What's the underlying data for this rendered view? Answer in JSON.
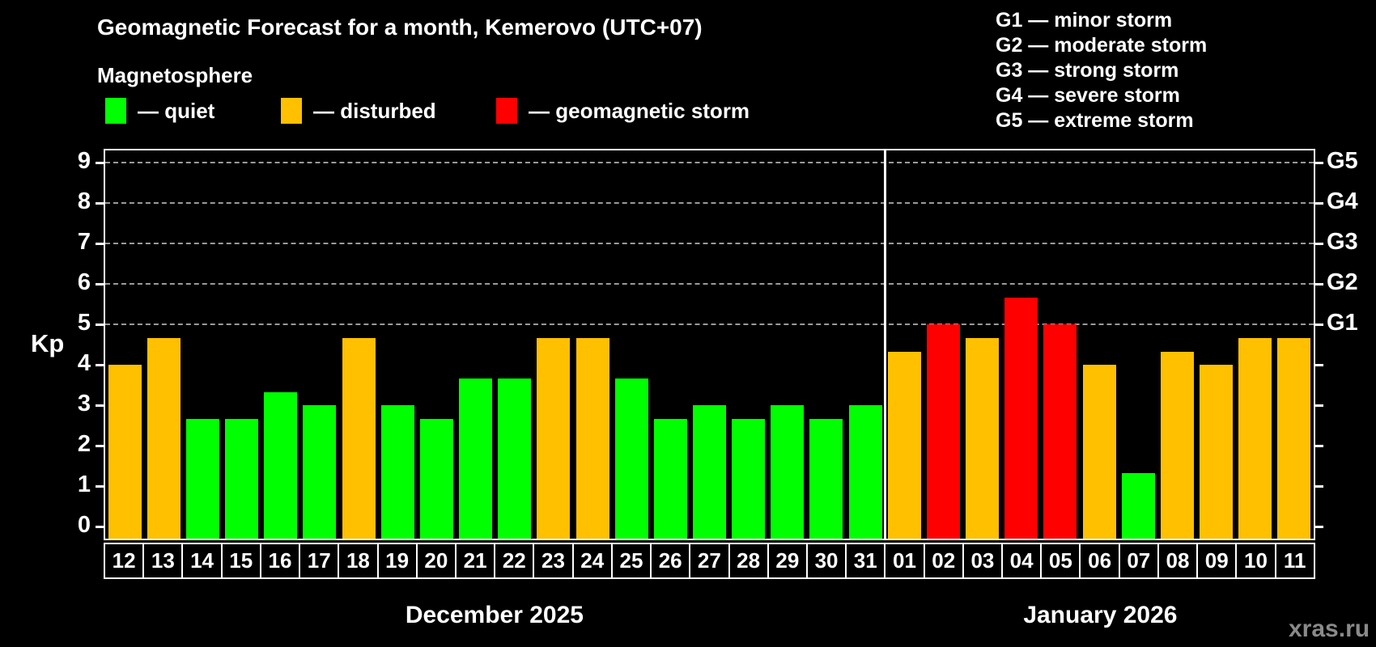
{
  "page": {
    "title": "Geomagnetic Forecast for a month, Kemerovo (UTC+07)",
    "subtitle": "Magnetosphere",
    "watermark": "xras.ru"
  },
  "legend": {
    "items": [
      {
        "id": "quiet",
        "color": "#00ff00",
        "label": "— quiet",
        "x": 130
      },
      {
        "id": "disturbed",
        "color": "#ffc000",
        "label": "— disturbed",
        "x": 347
      },
      {
        "id": "storm",
        "color": "#ff0000",
        "label": "— geomagnetic storm",
        "x": 613
      }
    ]
  },
  "storm_scale_legend": [
    "G1 — minor storm",
    "G2 — moderate storm",
    "G3 — strong storm",
    "G4 — severe storm",
    "G5 — extreme storm"
  ],
  "chart_data": {
    "type": "bar",
    "title": "Geomagnetic Forecast for a month, Kemerovo (UTC+07)",
    "subtitle": "Magnetosphere",
    "ylabel": "Kp",
    "ylim": [
      -0.3,
      9.36
    ],
    "yticks": [
      0,
      1,
      2,
      3,
      4,
      5,
      6,
      7,
      8,
      9
    ],
    "grid": "dashed horizontal lines at storm levels only",
    "storm_levels": [
      {
        "kp": 5,
        "label": "G1"
      },
      {
        "kp": 6,
        "label": "G2"
      },
      {
        "kp": 7,
        "label": "G3"
      },
      {
        "kp": 8,
        "label": "G4"
      },
      {
        "kp": 9,
        "label": "G5"
      }
    ],
    "level_colors": {
      "quiet": "#00ff00",
      "disturbed": "#ffc000",
      "storm": "#ff0000"
    },
    "months": [
      {
        "label": "December 2025",
        "days": [
          {
            "date": "12",
            "kp": 4.0,
            "level": "disturbed"
          },
          {
            "date": "13",
            "kp": 4.67,
            "level": "disturbed"
          },
          {
            "date": "14",
            "kp": 2.67,
            "level": "quiet"
          },
          {
            "date": "15",
            "kp": 2.67,
            "level": "quiet"
          },
          {
            "date": "16",
            "kp": 3.33,
            "level": "quiet"
          },
          {
            "date": "17",
            "kp": 3.0,
            "level": "quiet"
          },
          {
            "date": "18",
            "kp": 4.67,
            "level": "disturbed"
          },
          {
            "date": "19",
            "kp": 3.0,
            "level": "quiet"
          },
          {
            "date": "20",
            "kp": 2.67,
            "level": "quiet"
          },
          {
            "date": "21",
            "kp": 3.67,
            "level": "quiet"
          },
          {
            "date": "22",
            "kp": 3.67,
            "level": "quiet"
          },
          {
            "date": "23",
            "kp": 4.67,
            "level": "disturbed"
          },
          {
            "date": "24",
            "kp": 4.67,
            "level": "disturbed"
          },
          {
            "date": "25",
            "kp": 3.67,
            "level": "quiet"
          },
          {
            "date": "26",
            "kp": 2.67,
            "level": "quiet"
          },
          {
            "date": "27",
            "kp": 3.0,
            "level": "quiet"
          },
          {
            "date": "28",
            "kp": 2.67,
            "level": "quiet"
          },
          {
            "date": "29",
            "kp": 3.0,
            "level": "quiet"
          },
          {
            "date": "30",
            "kp": 2.67,
            "level": "quiet"
          },
          {
            "date": "31",
            "kp": 3.0,
            "level": "quiet"
          }
        ]
      },
      {
        "label": "January 2026",
        "days": [
          {
            "date": "01",
            "kp": 4.33,
            "level": "disturbed"
          },
          {
            "date": "02",
            "kp": 5.0,
            "level": "storm"
          },
          {
            "date": "03",
            "kp": 4.67,
            "level": "disturbed"
          },
          {
            "date": "04",
            "kp": 5.67,
            "level": "storm"
          },
          {
            "date": "05",
            "kp": 5.0,
            "level": "storm"
          },
          {
            "date": "06",
            "kp": 4.0,
            "level": "disturbed"
          },
          {
            "date": "07",
            "kp": 1.33,
            "level": "quiet"
          },
          {
            "date": "08",
            "kp": 4.33,
            "level": "disturbed"
          },
          {
            "date": "09",
            "kp": 4.0,
            "level": "disturbed"
          },
          {
            "date": "10",
            "kp": 4.67,
            "level": "disturbed"
          },
          {
            "date": "11",
            "kp": 4.67,
            "level": "disturbed"
          }
        ]
      }
    ]
  }
}
